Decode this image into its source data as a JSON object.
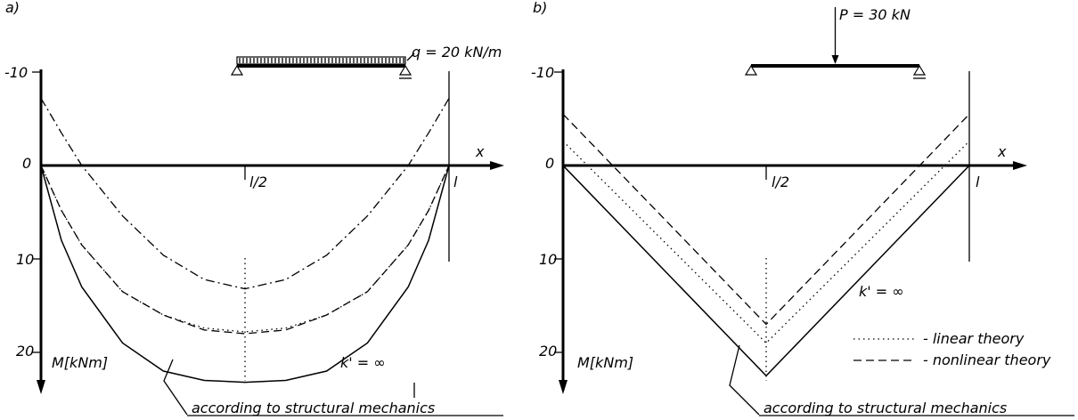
{
  "chart_data": [
    {
      "panel_label": "a)",
      "type": "line",
      "load_label": "q = 20 kN/m",
      "x_axis_label": "x",
      "y_axis_label": "M[kNm]",
      "x_tick_labels": [
        "l/2",
        "l"
      ],
      "y_tick_labels": [
        "-10",
        "0",
        "10",
        "20"
      ],
      "ylim": [
        -10,
        20
      ],
      "y_inverted": true,
      "stiffness_label": "k' = ∞",
      "annotation": "according to structural mechanics",
      "x": [
        0,
        0.05,
        0.1,
        0.2,
        0.3,
        0.4,
        0.5,
        0.6,
        0.7,
        0.8,
        0.9,
        0.95,
        1.0
      ],
      "series": [
        {
          "style": "dash-dot",
          "values": [
            -7.2,
            -3.5,
            0.0,
            5.4,
            9.6,
            12.2,
            13.2,
            12.2,
            9.6,
            5.4,
            0.0,
            -3.5,
            -7.2
          ]
        },
        {
          "style": "dotted",
          "values": [
            0,
            4.8,
            8.5,
            13.5,
            16.0,
            17.4,
            17.8,
            17.4,
            16.0,
            13.5,
            8.5,
            4.8,
            0
          ]
        },
        {
          "style": "dashed",
          "values": [
            0,
            4.8,
            8.5,
            13.5,
            16.0,
            17.6,
            18.0,
            17.6,
            16.0,
            13.5,
            8.5,
            4.8,
            0
          ]
        },
        {
          "style": "solid",
          "values": [
            0,
            8.0,
            13.0,
            19.0,
            22.0,
            23.0,
            23.2,
            23.0,
            22.0,
            19.0,
            13.0,
            8.0,
            0
          ]
        }
      ]
    },
    {
      "panel_label": "b)",
      "type": "line",
      "load_label": "P = 30 kN",
      "x_axis_label": "x",
      "y_axis_label": "M[kNm]",
      "x_tick_labels": [
        "l/2",
        "l"
      ],
      "y_tick_labels": [
        "-10",
        "0",
        "10",
        "20"
      ],
      "ylim": [
        -10,
        20
      ],
      "y_inverted": true,
      "stiffness_label": "k' = ∞",
      "legend": [
        {
          "style": "dotted",
          "label": "- linear theory"
        },
        {
          "style": "dashed",
          "label": "- nonlinear theory"
        }
      ],
      "annotation": "according to structural mechanics",
      "x": [
        0,
        0.5,
        1.0
      ],
      "series": [
        {
          "style": "dotted",
          "values": [
            -2.6,
            19.0,
            -2.6
          ]
        },
        {
          "style": "dashed",
          "values": [
            -5.5,
            17.0,
            -5.5
          ]
        },
        {
          "style": "solid",
          "values": [
            0,
            22.5,
            0
          ]
        }
      ]
    }
  ]
}
